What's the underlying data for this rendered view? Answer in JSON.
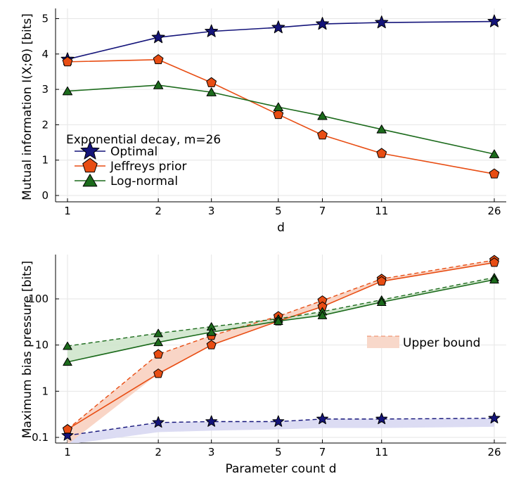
{
  "chart_data": [
    {
      "type": "line",
      "title": "",
      "xlabel": "d",
      "ylabel": "Mutual information I(X;Θ) [bits]",
      "xscale": "log",
      "x": [
        1,
        2,
        3,
        5,
        7,
        11,
        26
      ],
      "x_ticks": [
        "1",
        "2",
        "3",
        "5",
        "7",
        "11",
        "26"
      ],
      "y_ticks": [
        "0",
        "1",
        "2",
        "3",
        "4",
        "5"
      ],
      "ylim": [
        -0.15,
        5.15
      ],
      "grid": true,
      "legend_title": "Exponential decay, m=26",
      "legend_placement": "lower-left",
      "series": [
        {
          "name": "Optimal",
          "color": "#14147a",
          "marker": "star",
          "values": [
            3.85,
            4.47,
            4.64,
            4.75,
            4.85,
            4.89,
            4.92
          ]
        },
        {
          "name": "Jeffreys prior",
          "color": "#e84d13",
          "marker": "pentagon",
          "values": [
            3.78,
            3.84,
            3.19,
            2.29,
            1.71,
            1.19,
            0.61
          ]
        },
        {
          "name": "Log-normal",
          "color": "#1c6b1c",
          "marker": "triangle",
          "values": [
            2.95,
            3.12,
            2.92,
            2.5,
            2.25,
            1.87,
            1.17
          ]
        }
      ]
    },
    {
      "type": "line",
      "title": "",
      "xlabel": "Parameter count d",
      "ylabel": "Maximum bias pressure [bits]",
      "xscale": "log",
      "yscale": "log",
      "x": [
        1,
        2,
        3,
        5,
        7,
        11,
        26
      ],
      "x_ticks": [
        "1",
        "2",
        "3",
        "5",
        "7",
        "11",
        "26"
      ],
      "y_ticks": [
        "0.1",
        "1",
        "10",
        "100"
      ],
      "grid": true,
      "legend_placement": "right",
      "legend_entry": "Upper bound",
      "series": [
        {
          "color": "#14147a",
          "marker": "star",
          "values": [
            0.11,
            0.21,
            0.22,
            0.22,
            0.25,
            0.25,
            0.26
          ],
          "upper_bound": [
            0.11,
            0.21,
            0.22,
            0.22,
            0.25,
            0.25,
            0.26
          ],
          "band_low": [
            0.07,
            0.13,
            0.14,
            0.15,
            0.16,
            0.16,
            0.17
          ],
          "band_color": "#d8d8f2"
        },
        {
          "color": "#e84d13",
          "marker": "pentagon",
          "values": [
            0.15,
            2.4,
            10,
            33,
            68,
            240,
            610
          ],
          "upper_bound": [
            0.15,
            6.3,
            16,
            42,
            92,
            270,
            690
          ],
          "band_low": [
            0.07,
            2.4,
            10,
            33,
            68,
            240,
            610
          ],
          "band_color": "#f8d0c0"
        },
        {
          "color": "#1c6b1c",
          "marker": "triangle",
          "values": [
            4.3,
            11.5,
            19,
            33,
            44,
            85,
            260
          ],
          "upper_bound": [
            9.5,
            18,
            25,
            37,
            53,
            95,
            290
          ],
          "band_low": [
            4.3,
            11.5,
            19,
            33,
            44,
            85,
            260
          ],
          "band_color": "#cfe6cc"
        }
      ]
    }
  ]
}
